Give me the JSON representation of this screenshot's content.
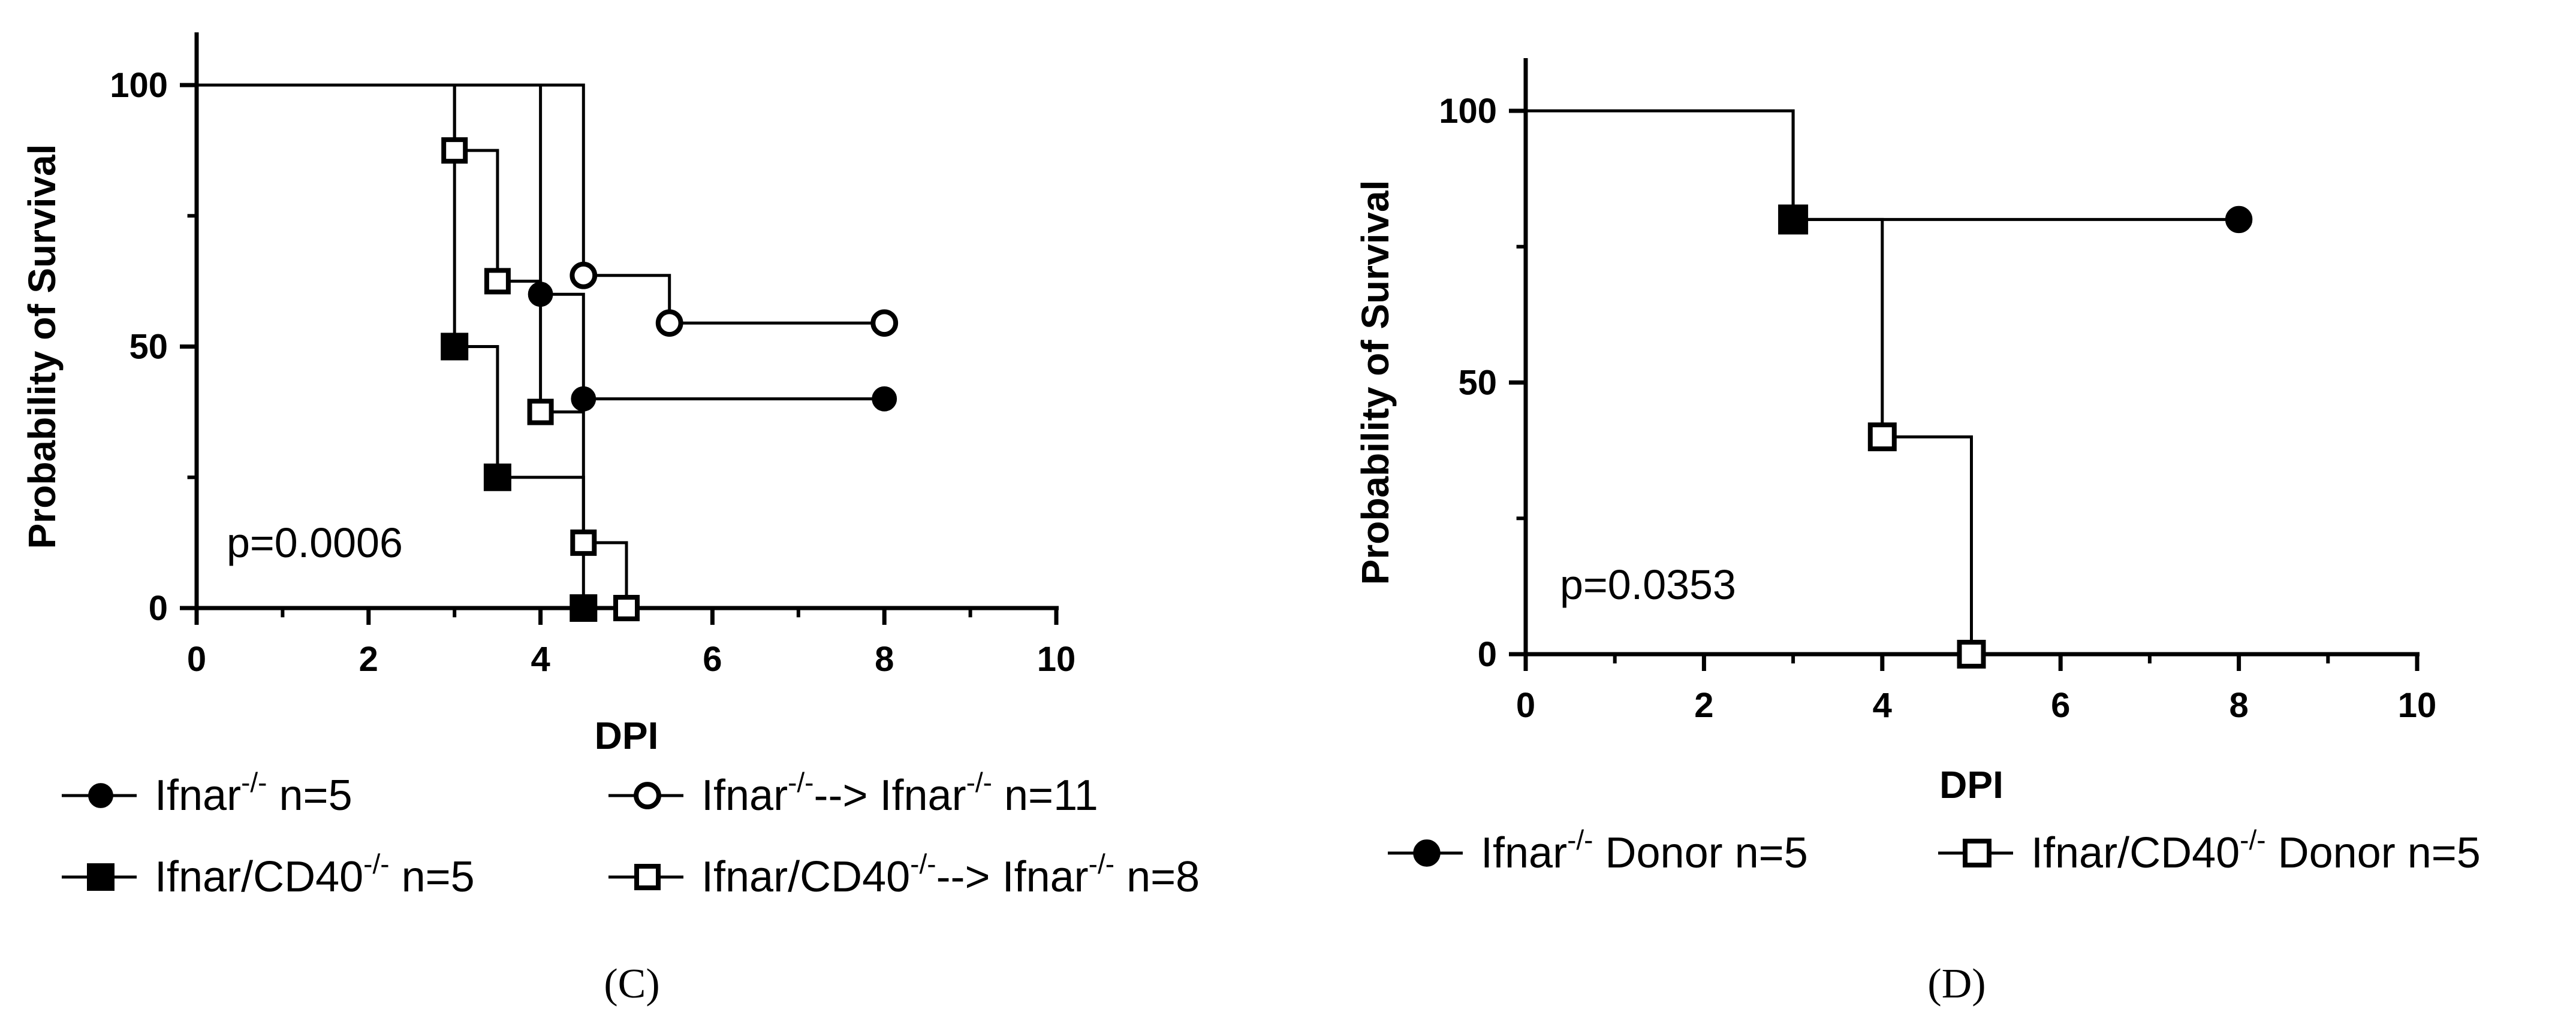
{
  "chart_data": [
    {
      "panel_label": "(C)",
      "type": "line",
      "subtype": "kaplan-meier",
      "xlabel": "DPI",
      "ylabel": "Probability of Survival",
      "xlim": [
        0,
        10
      ],
      "ylim": [
        0,
        100
      ],
      "xticks": [
        "0",
        "2",
        "4",
        "6",
        "8",
        "10"
      ],
      "yticks": [
        "0",
        "50",
        "100"
      ],
      "annotation": "p=0.0006",
      "series": [
        {
          "name": "Ifnar",
          "sup": "-/-",
          "suffix": " n=5",
          "marker": "filled-circle",
          "steps": [
            [
              0,
              100
            ],
            [
              4,
              100
            ],
            [
              4,
              60
            ],
            [
              4.5,
              60
            ],
            [
              4.5,
              40
            ],
            [
              8,
              40
            ]
          ],
          "points": [
            [
              4,
              60
            ],
            [
              4.5,
              40
            ],
            [
              8,
              40
            ]
          ]
        },
        {
          "name": "Ifnar",
          "sup": "-/-",
          "mid": "--> Ifnar",
          "sup2": "-/-",
          "suffix": " n=11",
          "marker": "open-circle",
          "steps": [
            [
              0,
              100
            ],
            [
              4.5,
              100
            ],
            [
              4.5,
              63.6
            ],
            [
              5.5,
              63.6
            ],
            [
              5.5,
              54.5
            ],
            [
              8,
              54.5
            ]
          ],
          "points": [
            [
              4.5,
              63.6
            ],
            [
              5.5,
              54.5
            ],
            [
              8,
              54.5
            ]
          ]
        },
        {
          "name": "Ifnar/CD40",
          "sup": "-/-",
          "suffix": " n=5",
          "marker": "filled-square",
          "steps": [
            [
              0,
              100
            ],
            [
              3,
              100
            ],
            [
              3,
              50
            ],
            [
              3.5,
              50
            ],
            [
              3.5,
              25
            ],
            [
              4.5,
              25
            ],
            [
              4.5,
              0
            ]
          ],
          "points": [
            [
              3,
              50
            ],
            [
              3.5,
              25
            ],
            [
              4.5,
              0
            ]
          ]
        },
        {
          "name": "Ifnar/CD40",
          "sup": "-/-",
          "mid": "--> Ifnar",
          "sup2": "-/-",
          "suffix": " n=8",
          "marker": "open-square",
          "steps": [
            [
              0,
              100
            ],
            [
              3,
              100
            ],
            [
              3,
              87.5
            ],
            [
              3.5,
              87.5
            ],
            [
              3.5,
              62.5
            ],
            [
              4,
              62.5
            ],
            [
              4,
              37.5
            ],
            [
              4.5,
              37.5
            ],
            [
              4.5,
              12.5
            ],
            [
              5,
              12.5
            ],
            [
              5,
              0
            ]
          ],
          "points": [
            [
              3,
              87.5
            ],
            [
              3.5,
              62.5
            ],
            [
              4,
              37.5
            ],
            [
              4.5,
              12.5
            ],
            [
              5,
              0
            ]
          ]
        }
      ]
    },
    {
      "panel_label": "(D)",
      "type": "line",
      "subtype": "kaplan-meier",
      "xlabel": "DPI",
      "ylabel": "Probability of Survival",
      "xlim": [
        0,
        10
      ],
      "ylim": [
        0,
        100
      ],
      "xticks": [
        "0",
        "2",
        "4",
        "6",
        "8",
        "10"
      ],
      "yticks": [
        "0",
        "50",
        "100"
      ],
      "annotation": "p=0.0353",
      "series": [
        {
          "name": "Ifnar",
          "sup": "-/-",
          "suffix": " Donor n=5",
          "marker": "filled-circle",
          "steps": [
            [
              0,
              100
            ],
            [
              3,
              100
            ],
            [
              3,
              80
            ],
            [
              8,
              80
            ]
          ],
          "points": [
            [
              8,
              80
            ]
          ]
        },
        {
          "name": "Ifnar/CD40",
          "sup": "-/-",
          "suffix": " Donor n=5",
          "marker": "open-square",
          "steps": [
            [
              0,
              100
            ],
            [
              3,
              100
            ],
            [
              3,
              80
            ],
            [
              4,
              80
            ],
            [
              4,
              40
            ],
            [
              5,
              40
            ],
            [
              5,
              0
            ]
          ],
          "points": [
            [
              4,
              40
            ],
            [
              5,
              0
            ]
          ]
        },
        {
          "name": "",
          "sup": "",
          "suffix": "",
          "marker": "filled-square",
          "steps": [],
          "points": [
            [
              3,
              80
            ]
          ]
        }
      ]
    }
  ]
}
